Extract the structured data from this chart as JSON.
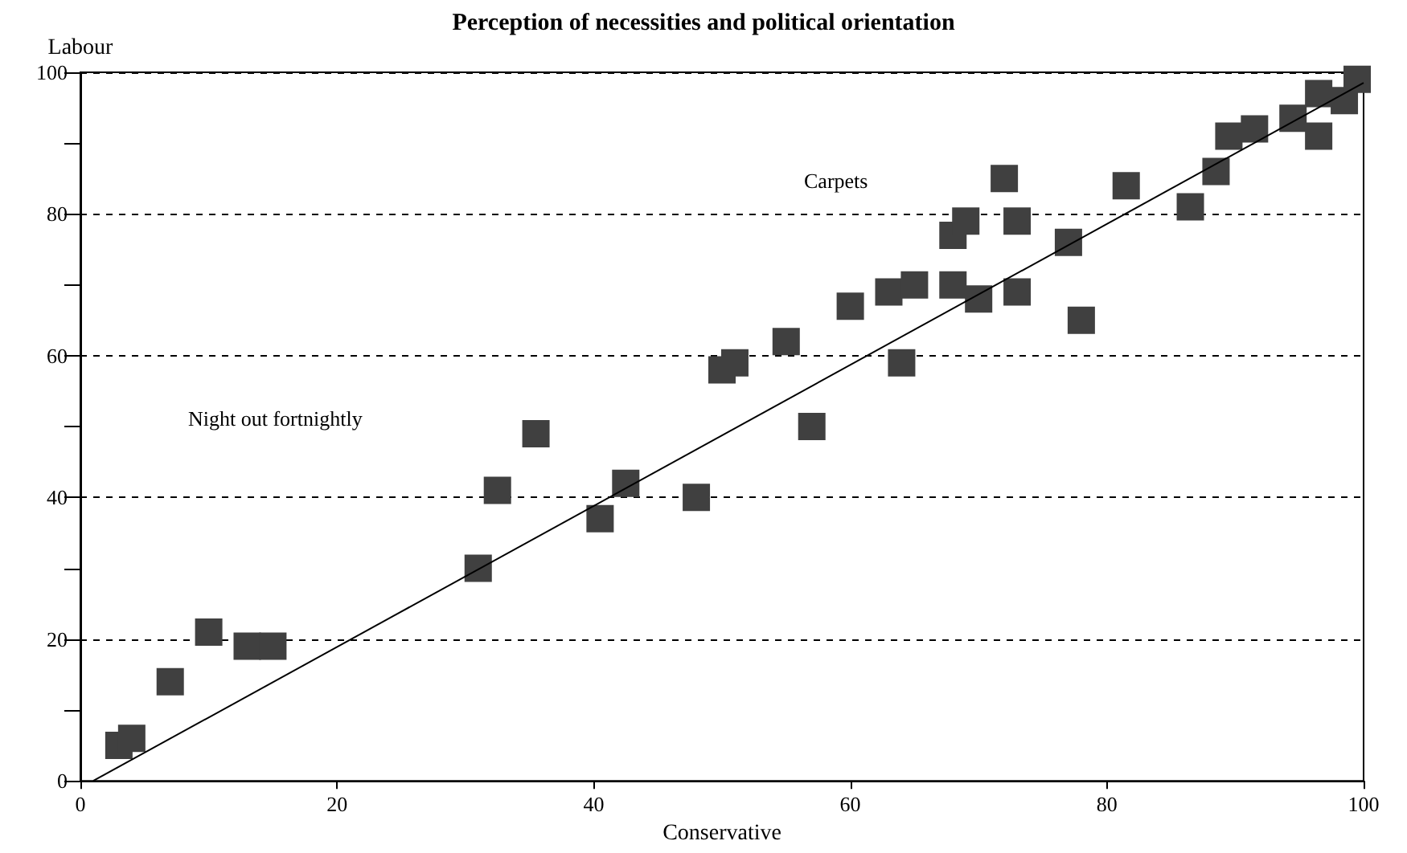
{
  "chart_data": {
    "type": "scatter",
    "title": "Perception of necessities and political orientation",
    "xlabel": "Conservative",
    "ylabel": "Labour",
    "annotations": [
      "Carpets",
      "Night out fortnightly"
    ],
    "xlim": [
      0,
      100
    ],
    "ylim": [
      0,
      100
    ],
    "xticks": [
      0,
      20,
      40,
      60,
      80,
      100
    ],
    "yticks": [
      0,
      {
        "value": 10,
        "label": null
      },
      20,
      {
        "value": 30,
        "label": null
      },
      40,
      {
        "value": 50,
        "label": null
      },
      60,
      {
        "value": 70,
        "label": null
      },
      80,
      {
        "value": 90,
        "label": null
      },
      100
    ],
    "grid": "y",
    "marker": "square",
    "series": [
      {
        "type": "scatter",
        "color": "#404040",
        "x": [
          3,
          4,
          7,
          10,
          13,
          15,
          31,
          32.5,
          35.5,
          40.5,
          42.5,
          48,
          50,
          51,
          55,
          57,
          60,
          63,
          64,
          65,
          68,
          68,
          69,
          70,
          72,
          73,
          73,
          77,
          78,
          81.5,
          86.5,
          88.5,
          89.5,
          91.5,
          94.5,
          96.5,
          96.5,
          98.5,
          99.5
        ],
        "values": [
          5,
          6,
          14,
          21,
          19,
          19,
          30,
          41,
          49,
          37,
          42,
          40,
          58,
          59,
          62,
          50,
          67,
          69,
          59,
          70,
          70,
          77,
          79,
          68,
          85,
          79,
          69,
          76,
          65,
          84,
          81,
          86,
          91,
          92,
          93.5,
          97,
          91,
          96,
          99
        ]
      },
      {
        "type": "line",
        "color": "#000000",
        "x": [
          1,
          100
        ],
        "values": [
          0,
          98.5
        ],
        "marker": "none"
      }
    ]
  }
}
